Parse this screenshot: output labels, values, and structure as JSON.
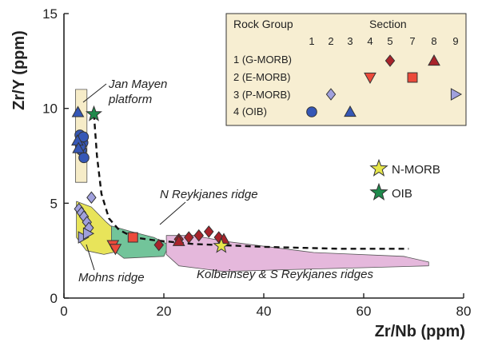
{
  "chart_data": {
    "type": "scatter",
    "xlabel": "Zr/Nb (ppm)",
    "ylabel": "Zr/Y (ppm)",
    "xlim": [
      0,
      80
    ],
    "ylim": [
      0,
      15
    ],
    "x_ticks": [
      0,
      20,
      40,
      60,
      80
    ],
    "y_ticks": [
      0,
      5,
      10,
      15
    ],
    "grid": false,
    "regions": [
      {
        "name": "Jan Mayen platform",
        "color": "#f6ecc8",
        "polygon": [
          [
            2.3,
            11.0
          ],
          [
            4.6,
            11.0
          ],
          [
            4.6,
            6.1
          ],
          [
            2.3,
            6.1
          ]
        ]
      },
      {
        "name": "Mohns ridge",
        "color": "#e8e45a",
        "polygon": [
          [
            2.5,
            5.1
          ],
          [
            5.5,
            4.8
          ],
          [
            8.5,
            4.0
          ],
          [
            11.5,
            3.3
          ],
          [
            11.5,
            2.5
          ],
          [
            8.0,
            2.3
          ],
          [
            4.5,
            2.5
          ],
          [
            2.5,
            3.2
          ]
        ]
      },
      {
        "name": "N Reykjanes ridge",
        "color": "#72c49a",
        "polygon": [
          [
            9.5,
            3.8
          ],
          [
            13.5,
            3.5
          ],
          [
            18,
            3.2
          ],
          [
            21,
            2.8
          ],
          [
            20,
            2.2
          ],
          [
            12,
            2.1
          ],
          [
            9.5,
            2.6
          ]
        ]
      },
      {
        "name": "Kolbeinsey & S Reykjanes ridges",
        "color": "#e5b8dc",
        "polygon": [
          [
            20.5,
            3.3
          ],
          [
            26,
            3.3
          ],
          [
            32,
            3.0
          ],
          [
            50,
            2.4
          ],
          [
            68,
            2.2
          ],
          [
            73,
            1.9
          ],
          [
            73,
            1.7
          ],
          [
            60,
            1.6
          ],
          [
            45,
            1.5
          ],
          [
            32,
            1.4
          ],
          [
            23,
            1.7
          ],
          [
            20.5,
            2.3
          ]
        ]
      }
    ],
    "trend_line": [
      [
        6,
        9.7
      ],
      [
        6.6,
        7.5
      ],
      [
        7.5,
        5.5
      ],
      [
        9,
        4.2
      ],
      [
        11,
        3.6
      ],
      [
        14,
        3.2
      ],
      [
        18,
        3.05
      ],
      [
        26,
        2.85
      ],
      [
        40,
        2.7
      ],
      [
        55,
        2.6
      ],
      [
        69,
        2.6
      ]
    ],
    "trend_style": "dashed",
    "series": [
      {
        "name": "1 (G-MORB)",
        "marker": "diamond",
        "color": "#a8232b",
        "points": [
          [
            19,
            2.8
          ],
          [
            23,
            3.1
          ],
          [
            25,
            3.2
          ],
          [
            27,
            3.3
          ],
          [
            29,
            3.5
          ],
          [
            31,
            3.2
          ]
        ]
      },
      {
        "name": "1 (G-MORB)",
        "marker": "triangle-up",
        "color": "#a8232b",
        "points": [
          [
            23,
            3.0
          ],
          [
            32,
            3.1
          ]
        ]
      },
      {
        "name": "2 (E-MORB)",
        "marker": "square",
        "color": "#ec4a3b",
        "points": [
          [
            13.8,
            3.2
          ]
        ]
      },
      {
        "name": "2 (E-MORB)",
        "marker": "triangle-down",
        "color": "#ec4a3b",
        "points": [
          [
            9.8,
            2.8
          ],
          [
            10.3,
            2.6
          ]
        ]
      },
      {
        "name": "3 (P-MORB)",
        "marker": "diamond",
        "color": "#a0a0dd",
        "points": [
          [
            3.0,
            4.7
          ],
          [
            3.5,
            4.5
          ],
          [
            4.0,
            4.3
          ],
          [
            4.6,
            4.0
          ],
          [
            5.5,
            5.3
          ],
          [
            5.0,
            3.7
          ]
        ]
      },
      {
        "name": "3 (P-MORB)",
        "marker": "triangle-right",
        "color": "#a0a0dd",
        "points": [
          [
            3.8,
            3.2
          ],
          [
            4.8,
            3.4
          ]
        ]
      },
      {
        "name": "4 (OIB)",
        "marker": "circle",
        "color": "#3557b6",
        "points": [
          [
            3.2,
            8.6
          ],
          [
            3.8,
            8.2
          ],
          [
            3.5,
            7.8
          ],
          [
            4.0,
            7.4
          ],
          [
            3.3,
            8.0
          ],
          [
            3.9,
            8.5
          ]
        ]
      },
      {
        "name": "4 (OIB)",
        "marker": "triangle-up",
        "color": "#3557b6",
        "points": [
          [
            2.8,
            9.8
          ],
          [
            2.7,
            8.3
          ],
          [
            2.9,
            7.9
          ]
        ]
      },
      {
        "name": "N-MORB",
        "marker": "star",
        "color": "#e6e64a",
        "points": [
          [
            31.5,
            2.75
          ]
        ]
      },
      {
        "name": "OIB",
        "marker": "star",
        "color": "#1f8a4c",
        "points": [
          [
            6.0,
            9.7
          ]
        ]
      }
    ],
    "legend": {
      "placement": "top-right",
      "header_group": "Rock Group",
      "header_section": "Section",
      "section_numbers": [
        "1",
        "2",
        "3",
        "4",
        "5",
        "7",
        "8",
        "9"
      ],
      "groups": [
        {
          "label": "1 (G-MORB)",
          "color": "#a8232b",
          "symbols": [
            {
              "section": "5",
              "marker": "diamond"
            },
            {
              "section": "8",
              "marker": "triangle-up"
            }
          ]
        },
        {
          "label": "2 (E-MORB)",
          "color": "#ec4a3b",
          "symbols": [
            {
              "section": "4",
              "marker": "triangle-down"
            },
            {
              "section": "7",
              "marker": "square"
            }
          ]
        },
        {
          "label": "3 (P-MORB)",
          "color": "#a0a0dd",
          "symbols": [
            {
              "section": "2",
              "marker": "diamond"
            },
            {
              "section": "9",
              "marker": "triangle-right"
            }
          ]
        },
        {
          "label": "4 (OIB)",
          "color": "#3557b6",
          "symbols": [
            {
              "section": "1",
              "marker": "circle"
            },
            {
              "section": "3",
              "marker": "triangle-up"
            }
          ]
        }
      ],
      "box_color": "#f7eed2"
    },
    "standards": [
      {
        "label": "N-MORB",
        "marker": "star",
        "color": "#e6e64a"
      },
      {
        "label": "OIB",
        "marker": "star",
        "color": "#1f8a4c"
      }
    ]
  }
}
